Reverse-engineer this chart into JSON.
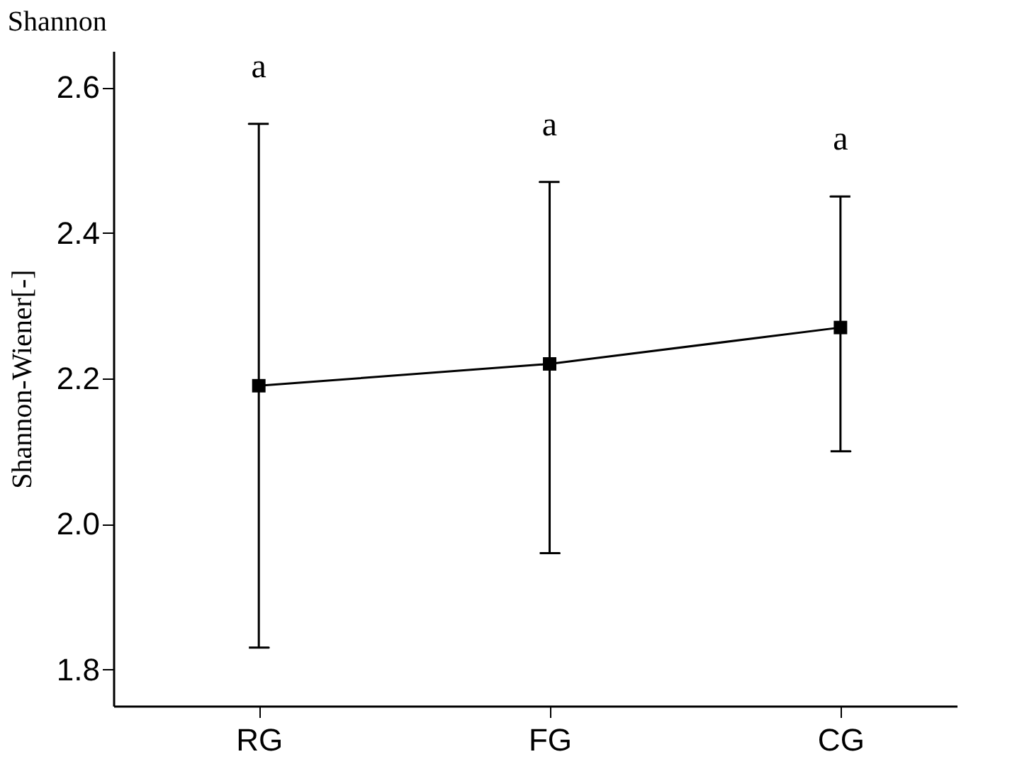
{
  "chart_data": {
    "type": "line",
    "title": "Shannon",
    "ylabel": "Shannon-Wiener[-]",
    "categories": [
      "RG",
      "FG",
      "CG"
    ],
    "series": [
      {
        "color": "#000000",
        "values": [
          2.19,
          2.22,
          2.27
        ],
        "errors": [
          [
            1.83,
            2.55
          ],
          [
            1.96,
            2.47
          ],
          [
            2.1,
            2.45
          ]
        ]
      }
    ],
    "ylim": [
      1.75,
      2.65
    ],
    "yticks": [
      1.8,
      {
        "value": 2,
        "label": "2.0"
      },
      2.2,
      2.4,
      2.6
    ],
    "grid": false,
    "marker": "square",
    "line_style": "solid",
    "annotations": [
      "a",
      "a",
      "a"
    ]
  }
}
